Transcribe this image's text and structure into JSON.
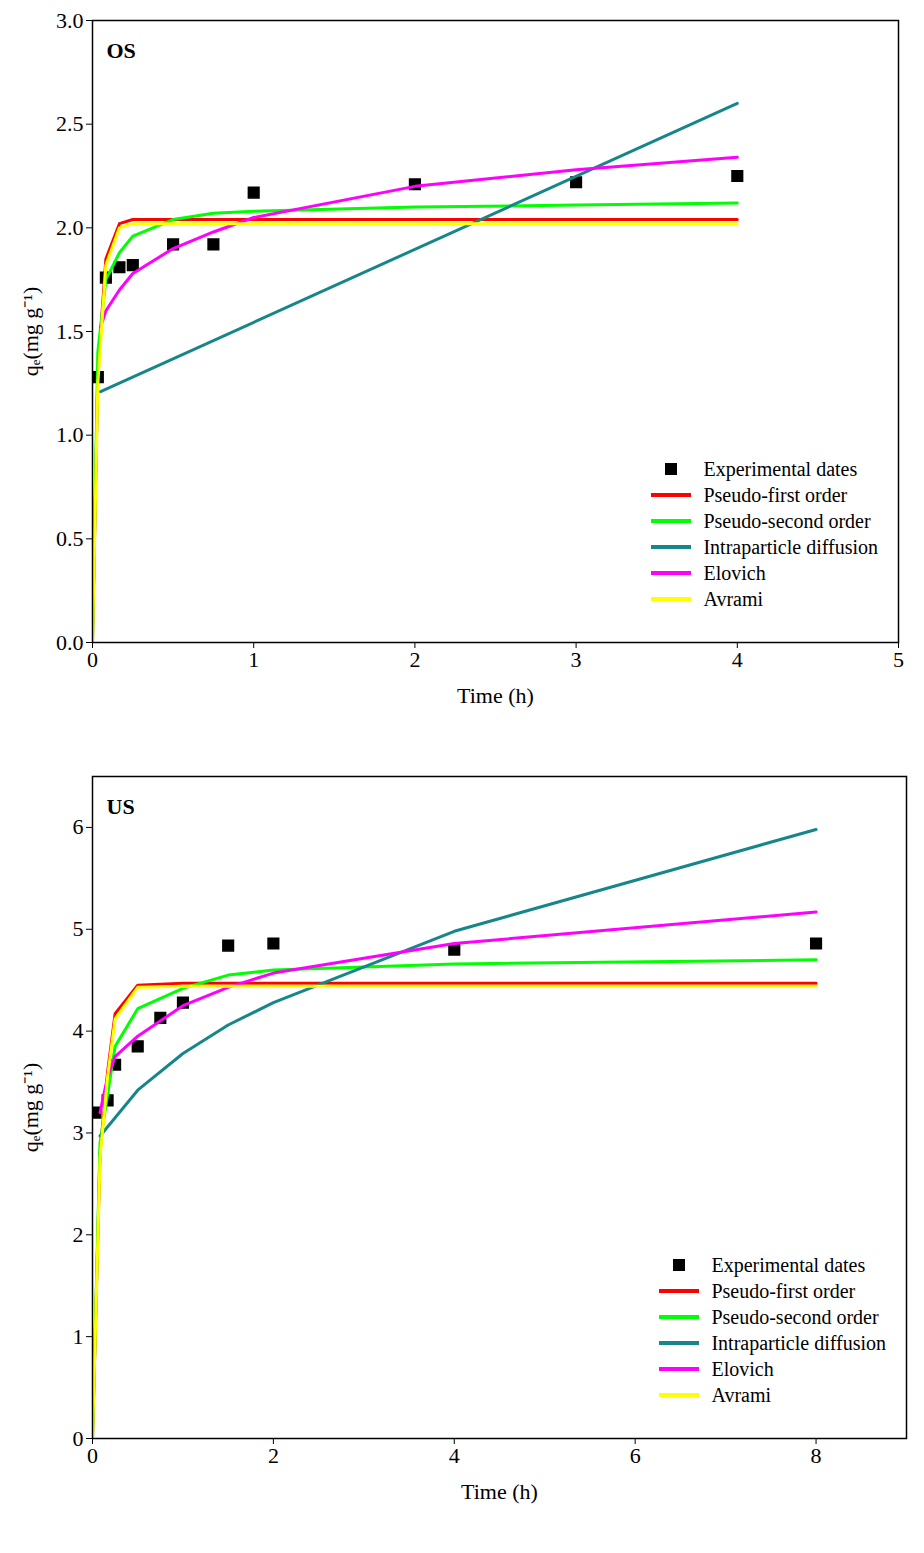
{
  "chart_data": [
    {
      "type": "line",
      "title": "OS",
      "x_label": "Time (h)",
      "y_label": "qₑ(mg g⁻¹)",
      "xlim": [
        0,
        5
      ],
      "xticks": [
        0,
        1,
        2,
        3,
        4,
        5
      ],
      "ylim": [
        0,
        3
      ],
      "yticks": [
        {
          "value": 0,
          "label": "0.0"
        },
        0.5,
        {
          "value": 1,
          "label": "1.0"
        },
        1.5,
        {
          "value": 2,
          "label": "2.0"
        },
        2.5,
        {
          "value": 3,
          "label": "3.0"
        }
      ],
      "legend": "lower right",
      "series": [
        {
          "name": "Experimental dates",
          "type": "scatter",
          "marker": "square",
          "color": "#000000",
          "x": [
            0.033,
            0.083,
            0.167,
            0.25,
            0.5,
            0.75,
            1,
            2,
            3,
            4
          ],
          "values": [
            1.28,
            1.76,
            1.81,
            1.82,
            1.92,
            1.92,
            2.17,
            2.21,
            2.22,
            2.25
          ]
        },
        {
          "name": "Pseudo-first order",
          "type": "line",
          "line_style": "solid",
          "color": "#ff0000",
          "x": [
            0,
            0.033,
            0.083,
            0.167,
            0.25,
            4
          ],
          "values": [
            0,
            1.3,
            1.85,
            2.02,
            2.04,
            2.04
          ]
        },
        {
          "name": "Pseudo-second order",
          "type": "line",
          "line_style": "solid",
          "color": "#00ff00",
          "x": [
            0,
            0.033,
            0.083,
            0.167,
            0.25,
            0.5,
            0.75,
            1,
            2,
            3,
            4
          ],
          "values": [
            0,
            1.4,
            1.75,
            1.88,
            1.96,
            2.04,
            2.07,
            2.08,
            2.1,
            2.11,
            2.12
          ]
        },
        {
          "name": "Intraparticle diffusion",
          "type": "line",
          "line_style": "solid",
          "color": "#17868a",
          "x": [
            0.05,
            4
          ],
          "values": [
            1.21,
            2.6
          ]
        },
        {
          "name": "Elovich",
          "type": "line",
          "line_style": "solid",
          "color": "#ff00ff",
          "x": [
            0.05,
            0.083,
            0.167,
            0.25,
            0.5,
            0.75,
            1,
            2,
            3,
            4
          ],
          "values": [
            1.52,
            1.6,
            1.7,
            1.78,
            1.9,
            1.98,
            2.05,
            2.2,
            2.28,
            2.34
          ]
        },
        {
          "name": "Avrami",
          "type": "line",
          "line_style": "solid",
          "color": "#ffff00",
          "x": [
            0,
            0.033,
            0.083,
            0.167,
            0.25,
            4
          ],
          "values": [
            0,
            1.25,
            1.82,
            2.0,
            2.02,
            2.02
          ]
        }
      ]
    },
    {
      "type": "line",
      "title": "US",
      "x_label": "Time (h)",
      "y_label": "qₑ(mg g⁻¹)",
      "xlim": [
        0,
        9
      ],
      "xticks": [
        0,
        2,
        4,
        6,
        8
      ],
      "ylim": [
        0,
        6.5
      ],
      "yticks": [
        0,
        1,
        2,
        3,
        4,
        5,
        6
      ],
      "legend": "lower right",
      "series": [
        {
          "name": "Experimental dates",
          "type": "scatter",
          "marker": "square",
          "color": "#000000",
          "x": [
            0.033,
            0.167,
            0.25,
            0.5,
            0.75,
            1,
            1.5,
            2,
            4,
            8
          ],
          "values": [
            3.2,
            3.32,
            3.67,
            3.85,
            4.13,
            4.28,
            4.84,
            4.86,
            4.8,
            4.86
          ]
        },
        {
          "name": "Pseudo-first order",
          "type": "line",
          "line_style": "solid",
          "color": "#ff0000",
          "x": [
            0,
            0.083,
            0.167,
            0.25,
            0.5,
            1,
            8
          ],
          "values": [
            0,
            2.8,
            3.6,
            4.17,
            4.45,
            4.47,
            4.47
          ]
        },
        {
          "name": "Pseudo-second order",
          "type": "line",
          "line_style": "solid",
          "color": "#00ff00",
          "x": [
            0,
            0.083,
            0.25,
            0.5,
            1,
            1.5,
            2,
            4,
            8
          ],
          "values": [
            0,
            2.9,
            3.85,
            4.22,
            4.42,
            4.55,
            4.6,
            4.66,
            4.7
          ]
        },
        {
          "name": "Intraparticle diffusion",
          "type": "line",
          "line_style": "solid",
          "color": "#17868a",
          "x": [
            0.083,
            0.25,
            0.5,
            1,
            1.5,
            2,
            4,
            8
          ],
          "values": [
            2.97,
            3.15,
            3.42,
            3.78,
            4.06,
            4.28,
            4.98,
            5.98
          ]
        },
        {
          "name": "Elovich",
          "type": "line",
          "line_style": "solid",
          "color": "#ff00ff",
          "x": [
            0.083,
            0.167,
            0.25,
            0.5,
            1,
            1.5,
            2,
            4,
            8
          ],
          "values": [
            3.2,
            3.55,
            3.75,
            3.95,
            4.25,
            4.43,
            4.57,
            4.86,
            5.17
          ]
        },
        {
          "name": "Avrami",
          "type": "line",
          "line_style": "solid",
          "color": "#ffff00",
          "x": [
            0,
            0.083,
            0.167,
            0.25,
            0.5,
            1,
            8
          ],
          "values": [
            0,
            2.75,
            3.55,
            4.12,
            4.43,
            4.44,
            4.44
          ]
        }
      ]
    }
  ]
}
